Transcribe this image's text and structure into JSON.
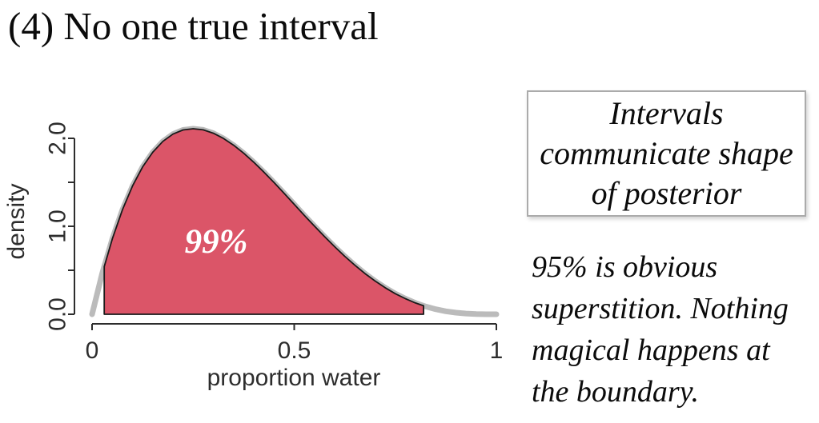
{
  "title": "(4) No one true interval",
  "chart_data": {
    "type": "area",
    "title": "",
    "xlabel": "proportion water",
    "ylabel": "density",
    "xlim": [
      0,
      1
    ],
    "ylim": [
      0,
      2.2
    ],
    "grid": false,
    "x_ticks": [
      {
        "value": 0,
        "label": "0"
      },
      {
        "value": 0.5,
        "label": "0.5"
      },
      {
        "value": 1,
        "label": "1"
      }
    ],
    "y_ticks": [
      {
        "value": 0,
        "label": "0.0"
      },
      {
        "value": 0.5,
        "label": ""
      },
      {
        "value": 1,
        "label": "1.0"
      },
      {
        "value": 1.5,
        "label": ""
      },
      {
        "value": 2,
        "label": "2.0"
      }
    ],
    "curve": [
      [
        0.0,
        0.0
      ],
      [
        0.025,
        0.463
      ],
      [
        0.05,
        0.857
      ],
      [
        0.075,
        1.187
      ],
      [
        0.1,
        1.458
      ],
      [
        0.125,
        1.675
      ],
      [
        0.15,
        1.842
      ],
      [
        0.175,
        1.965
      ],
      [
        0.2,
        2.048
      ],
      [
        0.225,
        2.095
      ],
      [
        0.25,
        2.109
      ],
      [
        0.275,
        2.096
      ],
      [
        0.3,
        2.058
      ],
      [
        0.325,
        1.999
      ],
      [
        0.35,
        1.922
      ],
      [
        0.375,
        1.831
      ],
      [
        0.4,
        1.728
      ],
      [
        0.425,
        1.616
      ],
      [
        0.45,
        1.497
      ],
      [
        0.475,
        1.375
      ],
      [
        0.5,
        1.25
      ],
      [
        0.525,
        1.125
      ],
      [
        0.55,
        1.002
      ],
      [
        0.575,
        0.883
      ],
      [
        0.6,
        0.768
      ],
      [
        0.625,
        0.659
      ],
      [
        0.65,
        0.557
      ],
      [
        0.675,
        0.463
      ],
      [
        0.7,
        0.378
      ],
      [
        0.725,
        0.302
      ],
      [
        0.75,
        0.234
      ],
      [
        0.775,
        0.177
      ],
      [
        0.8,
        0.128
      ],
      [
        0.825,
        0.088
      ],
      [
        0.85,
        0.057
      ],
      [
        0.875,
        0.034
      ],
      [
        0.9,
        0.018
      ],
      [
        0.925,
        0.008
      ],
      [
        0.95,
        0.002
      ],
      [
        0.975,
        0.0
      ],
      [
        1.0,
        0.0
      ]
    ],
    "interval": {
      "label": "99%",
      "lower": 0.03,
      "upper": 0.82
    },
    "colors": {
      "fill": "#DB5568",
      "curve_halo": "#BBBBBB",
      "outline": "#1a1a1a",
      "axis": "#2d2d2d"
    }
  },
  "note_box": {
    "lines": [
      "Intervals",
      "communicate shape",
      "of posterior"
    ]
  },
  "caption": {
    "lines": [
      "95% is obvious",
      "superstition. Nothing",
      "magical happens at",
      "the boundary."
    ]
  }
}
